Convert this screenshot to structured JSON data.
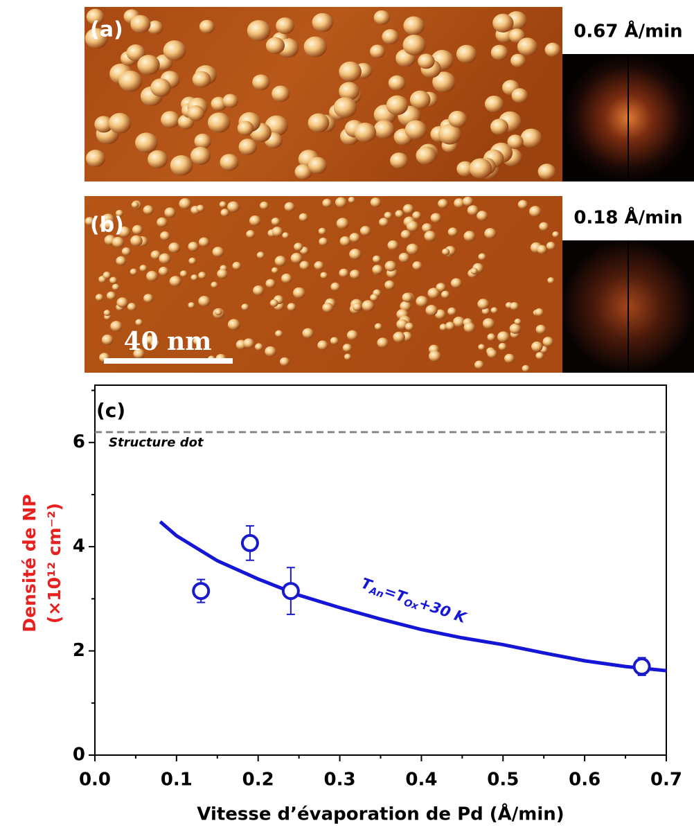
{
  "panels": [
    {
      "label": "(a)",
      "rate": "0.67 Å/min"
    },
    {
      "label": "(b)",
      "rate": "0.18 Å/min"
    }
  ],
  "scale_bar": "40 nm",
  "chart_data": {
    "type": "scatter",
    "panel_label": "(c)",
    "x_label": "Vitesse d’évaporation de Pd (Å/min)",
    "y_label": [
      "Densité de NP",
      "(×10¹² cm⁻²)"
    ],
    "y_label_color": "#e8201e",
    "xlim": [
      0,
      0.7
    ],
    "ylim": [
      0,
      7.1
    ],
    "xticks": [
      {
        "value": 0,
        "label": "0.0"
      },
      0.1,
      0.2,
      0.3,
      0.4,
      0.5,
      0.6,
      0.7
    ],
    "xminorticks": [
      0.05,
      0.15,
      0.25,
      0.35,
      0.45,
      0.55,
      0.65
    ],
    "yticks": [
      0,
      2,
      4,
      6
    ],
    "yminorticks": [
      1,
      3,
      5,
      7
    ],
    "reference_line": {
      "value": 6.2,
      "label": "Structure dot",
      "color": "#888888"
    },
    "series": [
      {
        "x": [
          0.13,
          0.19,
          0.24,
          0.67
        ],
        "values": [
          3.15,
          4.07,
          3.15,
          1.7
        ],
        "errors": [
          0.22,
          0.33,
          0.45,
          0.17
        ],
        "color": "#1a1acd"
      },
      {
        "x": [
          0.08,
          0.1,
          0.15,
          0.2,
          0.25,
          0.3,
          0.35,
          0.4,
          0.45,
          0.5,
          0.55,
          0.6,
          0.65,
          0.7
        ],
        "values": [
          4.48,
          4.21,
          3.73,
          3.38,
          3.07,
          2.83,
          2.61,
          2.41,
          2.25,
          2.12,
          1.96,
          1.81,
          1.7,
          1.62
        ],
        "color": "#1515d6"
      }
    ],
    "annotation": {
      "parts": [
        "T",
        "An",
        "=T",
        "Ox",
        "+30 K"
      ],
      "color": "#1515d6"
    }
  }
}
